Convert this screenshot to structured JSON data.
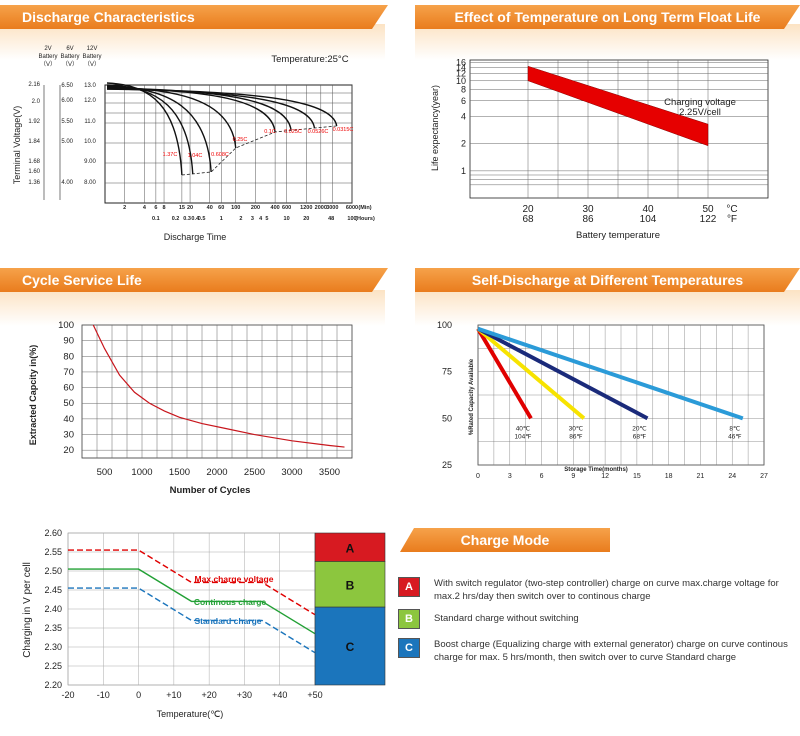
{
  "colors": {
    "header": "#ec8526",
    "red_band": "#e60000",
    "bar_A": "#d71a21",
    "bar_B": "#8cc63e",
    "bar_C": "#1b75bc"
  },
  "panels": {
    "discharge": {
      "title": "Discharge Characteristics",
      "temperature": "Temperature:25°C",
      "col_headers": [
        [
          "2V",
          "Battery",
          "（V）"
        ],
        [
          "6V",
          "Battery",
          "（V）"
        ],
        [
          "12V",
          "Battery",
          "（V）"
        ]
      ],
      "ylabel": "Terminal Voltage(V)",
      "xlabel": "Discharge Time",
      "min_label": "(Min)",
      "hours_label": "(Hours)"
    },
    "float": {
      "title": "Effect of Temperature on Long Term Float Life",
      "ylabel": "Life expectancy(year)",
      "xlabel": "Battery temperature",
      "annotation": [
        "Charging voltage",
        "2.25V/cell"
      ],
      "unit_c": "°C",
      "unit_f": "°F"
    },
    "cycle": {
      "title": "Cycle Service Life",
      "ylabel": "Extracted  Capcity  in(%)",
      "xlabel": "Number of Cycles"
    },
    "self": {
      "title": "Self-Discharge at Different Temperatures",
      "ylabel": "%Rated Capacity Available",
      "xlabel": "Storage Time(months)"
    },
    "charge": {
      "title": "Charge Mode",
      "ylabel": "Charging in V per cell",
      "xlabel": "Temperature(℃)",
      "legend": [
        {
          "key": "A",
          "text": "With switch regulator (two-step controller) charge on curve max.charge voltage for max.2 hrs/day  then switch over to continous charge"
        },
        {
          "key": "B",
          "text": "Standard charge without switching"
        },
        {
          "key": "C",
          "text": "Boost charge (Equalizing charge with external generator) charge on curve continous charge for max. 5 hrs/month, then switch over to curve Standard charge"
        }
      ]
    }
  },
  "chart_data": [
    {
      "type": "line",
      "title": "Discharge Characteristics",
      "y_ticks_2v": [
        "2.16",
        "2.0",
        "1.92",
        "1.84",
        "1.68",
        "1.60",
        "1.36"
      ],
      "y_ticks_6v": [
        "6.50",
        "6.00",
        "5.50",
        "5.00",
        "4.00"
      ],
      "y_ticks_12v": [
        "13.0",
        "12.0",
        "11.0",
        "10.0",
        "9.00",
        "8.00"
      ],
      "x_ticks_min": [
        "2",
        "4",
        "6",
        "8",
        "15",
        "20",
        "40",
        "60",
        "100",
        "200",
        "400",
        "600",
        "1200",
        "2000",
        "3000",
        "6000"
      ],
      "x_ticks_hours": [
        "0.1",
        "0.2",
        "0.3",
        "0.4",
        "0.5",
        "1",
        "2",
        "3",
        "4",
        "5",
        "10",
        "20",
        "48",
        "100"
      ],
      "curve_labels": [
        "1.37C",
        "1.04C",
        "0.608C",
        "0.25C",
        "0.1C",
        "0.025C",
        "0.0526C",
        "0.0315C"
      ]
    },
    {
      "type": "area",
      "title": "Effect of Temperature on Long Term Float Life",
      "x_c": [
        "20",
        "30",
        "40",
        "50"
      ],
      "x_f": [
        "68",
        "86",
        "104",
        "122"
      ],
      "y_ticks": [
        "16",
        "14",
        "12",
        "10",
        "8",
        "6",
        "4",
        "2",
        "1"
      ],
      "x": [
        20,
        50
      ],
      "upper": [
        14.5,
        3.3
      ],
      "lower": [
        10,
        1.9
      ],
      "ylim": [
        0.5,
        17
      ]
    },
    {
      "type": "line",
      "title": "Cycle Service Life",
      "x_ticks": [
        "500",
        "1000",
        "1500",
        "2000",
        "2500",
        "3000",
        "3500"
      ],
      "y_ticks": [
        "100",
        "90",
        "80",
        "70",
        "60",
        "50",
        "40",
        "30",
        "20"
      ],
      "x": [
        350,
        500,
        700,
        900,
        1100,
        1300,
        1500,
        1800,
        2100,
        2500,
        3000,
        3500,
        3700
      ],
      "y": [
        100,
        85,
        68,
        57,
        50,
        45,
        41,
        37,
        34,
        30,
        26,
        23,
        22
      ],
      "xlim": [
        200,
        3800
      ],
      "ylim": [
        15,
        100
      ]
    },
    {
      "type": "line",
      "title": "Self-Discharge at Different Temperatures",
      "x_ticks": [
        "0",
        "3",
        "6",
        "9",
        "12",
        "15",
        "18",
        "21",
        "24",
        "27"
      ],
      "y_ticks": [
        "100",
        "75",
        "50",
        "25"
      ],
      "xlim": [
        0,
        27
      ],
      "ylim": [
        25,
        100
      ],
      "series": [
        {
          "name": "40℃",
          "name2": "104℉",
          "x": [
            0,
            5
          ],
          "y": [
            98,
            50
          ],
          "color": "#e00000"
        },
        {
          "name": "30℃",
          "name2": "86℉",
          "x": [
            0,
            10
          ],
          "y": [
            98,
            50
          ],
          "color": "#f7e300"
        },
        {
          "name": "20℃",
          "name2": "68℉",
          "x": [
            0,
            16
          ],
          "y": [
            98,
            50
          ],
          "color": "#1a2a7a"
        },
        {
          "name": "8℃",
          "name2": "46℉",
          "x": [
            0,
            25
          ],
          "y": [
            98,
            50
          ],
          "color": "#2b9bd8"
        }
      ]
    },
    {
      "type": "line",
      "title": "Charge Mode",
      "x_ticks": [
        "-20",
        "-10",
        "0",
        "+10",
        "+20",
        "+30",
        "+40",
        "+50"
      ],
      "y_ticks": [
        "2.60",
        "2.55",
        "2.50",
        "2.45",
        "2.40",
        "2.35",
        "2.30",
        "2.25",
        "2.20"
      ],
      "xlim": [
        -20,
        50
      ],
      "ylim": [
        2.2,
        2.6
      ],
      "series": [
        {
          "name": "Max.charge voltage",
          "x": [
            -20,
            0,
            15,
            35,
            50
          ],
          "y": [
            2.555,
            2.555,
            2.47,
            2.47,
            2.385
          ],
          "color": "#e00000",
          "dash": true
        },
        {
          "name": "Continous charge",
          "x": [
            -20,
            0,
            15,
            35,
            50
          ],
          "y": [
            2.505,
            2.505,
            2.42,
            2.42,
            2.335
          ],
          "color": "#22a035",
          "dash": false
        },
        {
          "name": "Standard charge",
          "x": [
            -20,
            0,
            15,
            35,
            50
          ],
          "y": [
            2.455,
            2.455,
            2.37,
            2.37,
            2.285
          ],
          "color": "#1b75bc",
          "dash": true
        }
      ],
      "bars": [
        {
          "label": "A",
          "from": 2.6,
          "to": 2.525,
          "color": "#d71a21"
        },
        {
          "label": "B",
          "from": 2.525,
          "to": 2.405,
          "color": "#8cc63e"
        },
        {
          "label": "C",
          "from": 2.405,
          "to": 2.2,
          "color": "#1b75bc"
        }
      ]
    }
  ]
}
